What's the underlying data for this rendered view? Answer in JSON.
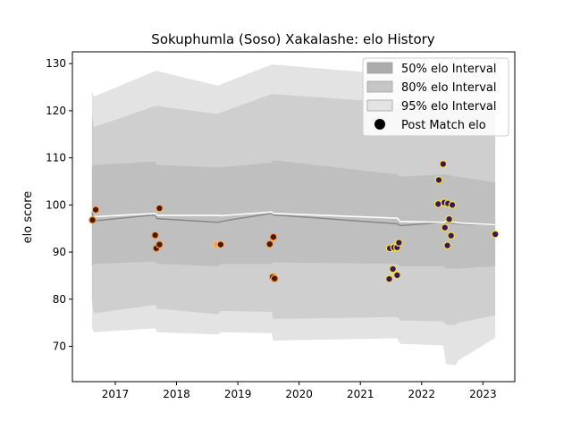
{
  "chart_data": {
    "type": "area",
    "title": "Sokuphumla (Soso) Xakalashe: elo History",
    "xlabel": "",
    "ylabel": "elo score",
    "xlim": [
      2016.3,
      2023.52
    ],
    "ylim": [
      62.5,
      132.5
    ],
    "x_ticks": [
      2017,
      2018,
      2019,
      2020,
      2021,
      2022,
      2023
    ],
    "y_ticks": [
      70,
      80,
      90,
      100,
      110,
      120,
      130
    ],
    "legend_position": "top-right",
    "legend": [
      {
        "label": "50% elo Interval",
        "kind": "band",
        "color": "#acacac"
      },
      {
        "label": "80% elo Interval",
        "kind": "band",
        "color": "#c6c6c6"
      },
      {
        "label": "95% elo Interval",
        "kind": "band",
        "color": "#e3e3e3"
      },
      {
        "label": "Post Match elo",
        "kind": "marker",
        "color": "#000000"
      }
    ],
    "band_colors": {
      "band95": "#e3e3e3",
      "band80": "#cfcfcf",
      "band50": "#bfbfbf"
    },
    "line_colors": {
      "mean": "#ffffff",
      "median": "#888888"
    },
    "x": [
      2016.62,
      2016.65,
      2017.65,
      2017.68,
      2018.68,
      2018.72,
      2019.55,
      2019.58,
      2021.6,
      2021.65,
      2022.35,
      2022.4,
      2022.55,
      2022.6,
      2023.2
    ],
    "series": [
      {
        "name": "50% elo Interval",
        "lower": [
          87,
          87.5,
          88,
          87.5,
          87,
          87.5,
          87.5,
          87.8,
          87.5,
          87,
          87,
          86.5,
          86.5,
          86.5,
          87
        ],
        "upper": [
          108,
          108.5,
          109.2,
          108.5,
          108,
          108,
          109,
          109.5,
          106.5,
          106,
          106.5,
          106.5,
          106,
          106,
          104.8
        ]
      },
      {
        "name": "80% elo Interval",
        "lower": [
          80,
          77,
          78.8,
          78,
          76.8,
          77.5,
          77.3,
          75.8,
          76.2,
          75.5,
          75.3,
          74.6,
          74.5,
          75,
          76.6
        ]
      },
      {
        "name": "95% elo Interval",
        "lower": [
          74,
          73,
          73.8,
          73,
          72.5,
          73,
          72.8,
          71.2,
          71.7,
          70.5,
          70.2,
          66.2,
          66,
          67,
          71.8
        ]
      },
      {
        "name": "mean",
        "values": [
          96.8,
          97.5,
          98.2,
          97.8,
          97.8,
          97.7,
          98.5,
          98.2,
          97.2,
          96.5,
          96.3,
          96.5,
          96.3,
          96.2,
          95.8
        ]
      },
      {
        "name": "median",
        "values": [
          98.4,
          96.6,
          97.9,
          97.1,
          96.3,
          96.5,
          98.2,
          97.9,
          96,
          95.6,
          96.3,
          96.3,
          96.1,
          96,
          95.8
        ]
      }
    ],
    "upper95": {
      "x": [
        2016.62,
        2016.65,
        2017.65,
        2017.72,
        2018.65,
        2018.7,
        2019.55,
        2019.6,
        2022.35,
        2022.4,
        2023.2
      ],
      "values": [
        124.2,
        123,
        128.4,
        128.5,
        125,
        125.5,
        129.8,
        129.8,
        126.8,
        127.8,
        128.5
      ]
    },
    "upper80": {
      "x": [
        2016.62,
        2016.65,
        2017.65,
        2017.72,
        2018.65,
        2018.7,
        2019.55,
        2019.6,
        2022.35,
        2022.4,
        2023.2
      ],
      "values": [
        119.5,
        116.5,
        121,
        121,
        119,
        119.5,
        123.5,
        123.5,
        121,
        121.5,
        121
      ]
    },
    "points": [
      {
        "x": 2016.63,
        "y": 96.8,
        "c": 0.1
      },
      {
        "x": 2016.68,
        "y": 99.0,
        "c": 0.05
      },
      {
        "x": 2017.65,
        "y": 93.6,
        "c": 0.1
      },
      {
        "x": 2017.67,
        "y": 90.8,
        "c": 0.1
      },
      {
        "x": 2017.72,
        "y": 91.6,
        "c": 0.1
      },
      {
        "x": 2017.72,
        "y": 99.3,
        "c": 0.05
      },
      {
        "x": 2018.65,
        "y": 91.6,
        "c": 0.0
      },
      {
        "x": 2018.72,
        "y": 91.6,
        "c": 0.05
      },
      {
        "x": 2019.52,
        "y": 91.7,
        "c": 0.1
      },
      {
        "x": 2019.57,
        "y": 84.7,
        "c": 0.1
      },
      {
        "x": 2019.58,
        "y": 93.2,
        "c": 0.1
      },
      {
        "x": 2019.6,
        "y": 84.4,
        "c": 0.1
      },
      {
        "x": 2021.47,
        "y": 84.3,
        "c": 0.9
      },
      {
        "x": 2021.48,
        "y": 90.8,
        "c": 0.9
      },
      {
        "x": 2021.53,
        "y": 86.4,
        "c": 0.9
      },
      {
        "x": 2021.55,
        "y": 91.0,
        "c": 0.9
      },
      {
        "x": 2021.6,
        "y": 85.1,
        "c": 0.9
      },
      {
        "x": 2021.6,
        "y": 91.0,
        "c": 0.9
      },
      {
        "x": 2021.63,
        "y": 92.0,
        "c": 0.9
      },
      {
        "x": 2022.27,
        "y": 100.2,
        "c": 0.9
      },
      {
        "x": 2022.28,
        "y": 105.3,
        "c": 0.9
      },
      {
        "x": 2022.35,
        "y": 108.7,
        "c": 0.9
      },
      {
        "x": 2022.37,
        "y": 100.5,
        "c": 0.9
      },
      {
        "x": 2022.38,
        "y": 95.2,
        "c": 0.9
      },
      {
        "x": 2022.42,
        "y": 91.4,
        "c": 0.9
      },
      {
        "x": 2022.43,
        "y": 100.3,
        "c": 0.9
      },
      {
        "x": 2022.45,
        "y": 97.0,
        "c": 0.9
      },
      {
        "x": 2022.48,
        "y": 93.5,
        "c": 0.9
      },
      {
        "x": 2022.5,
        "y": 100.0,
        "c": 0.9
      },
      {
        "x": 2023.2,
        "y": 93.8,
        "c": 0.9
      }
    ]
  }
}
